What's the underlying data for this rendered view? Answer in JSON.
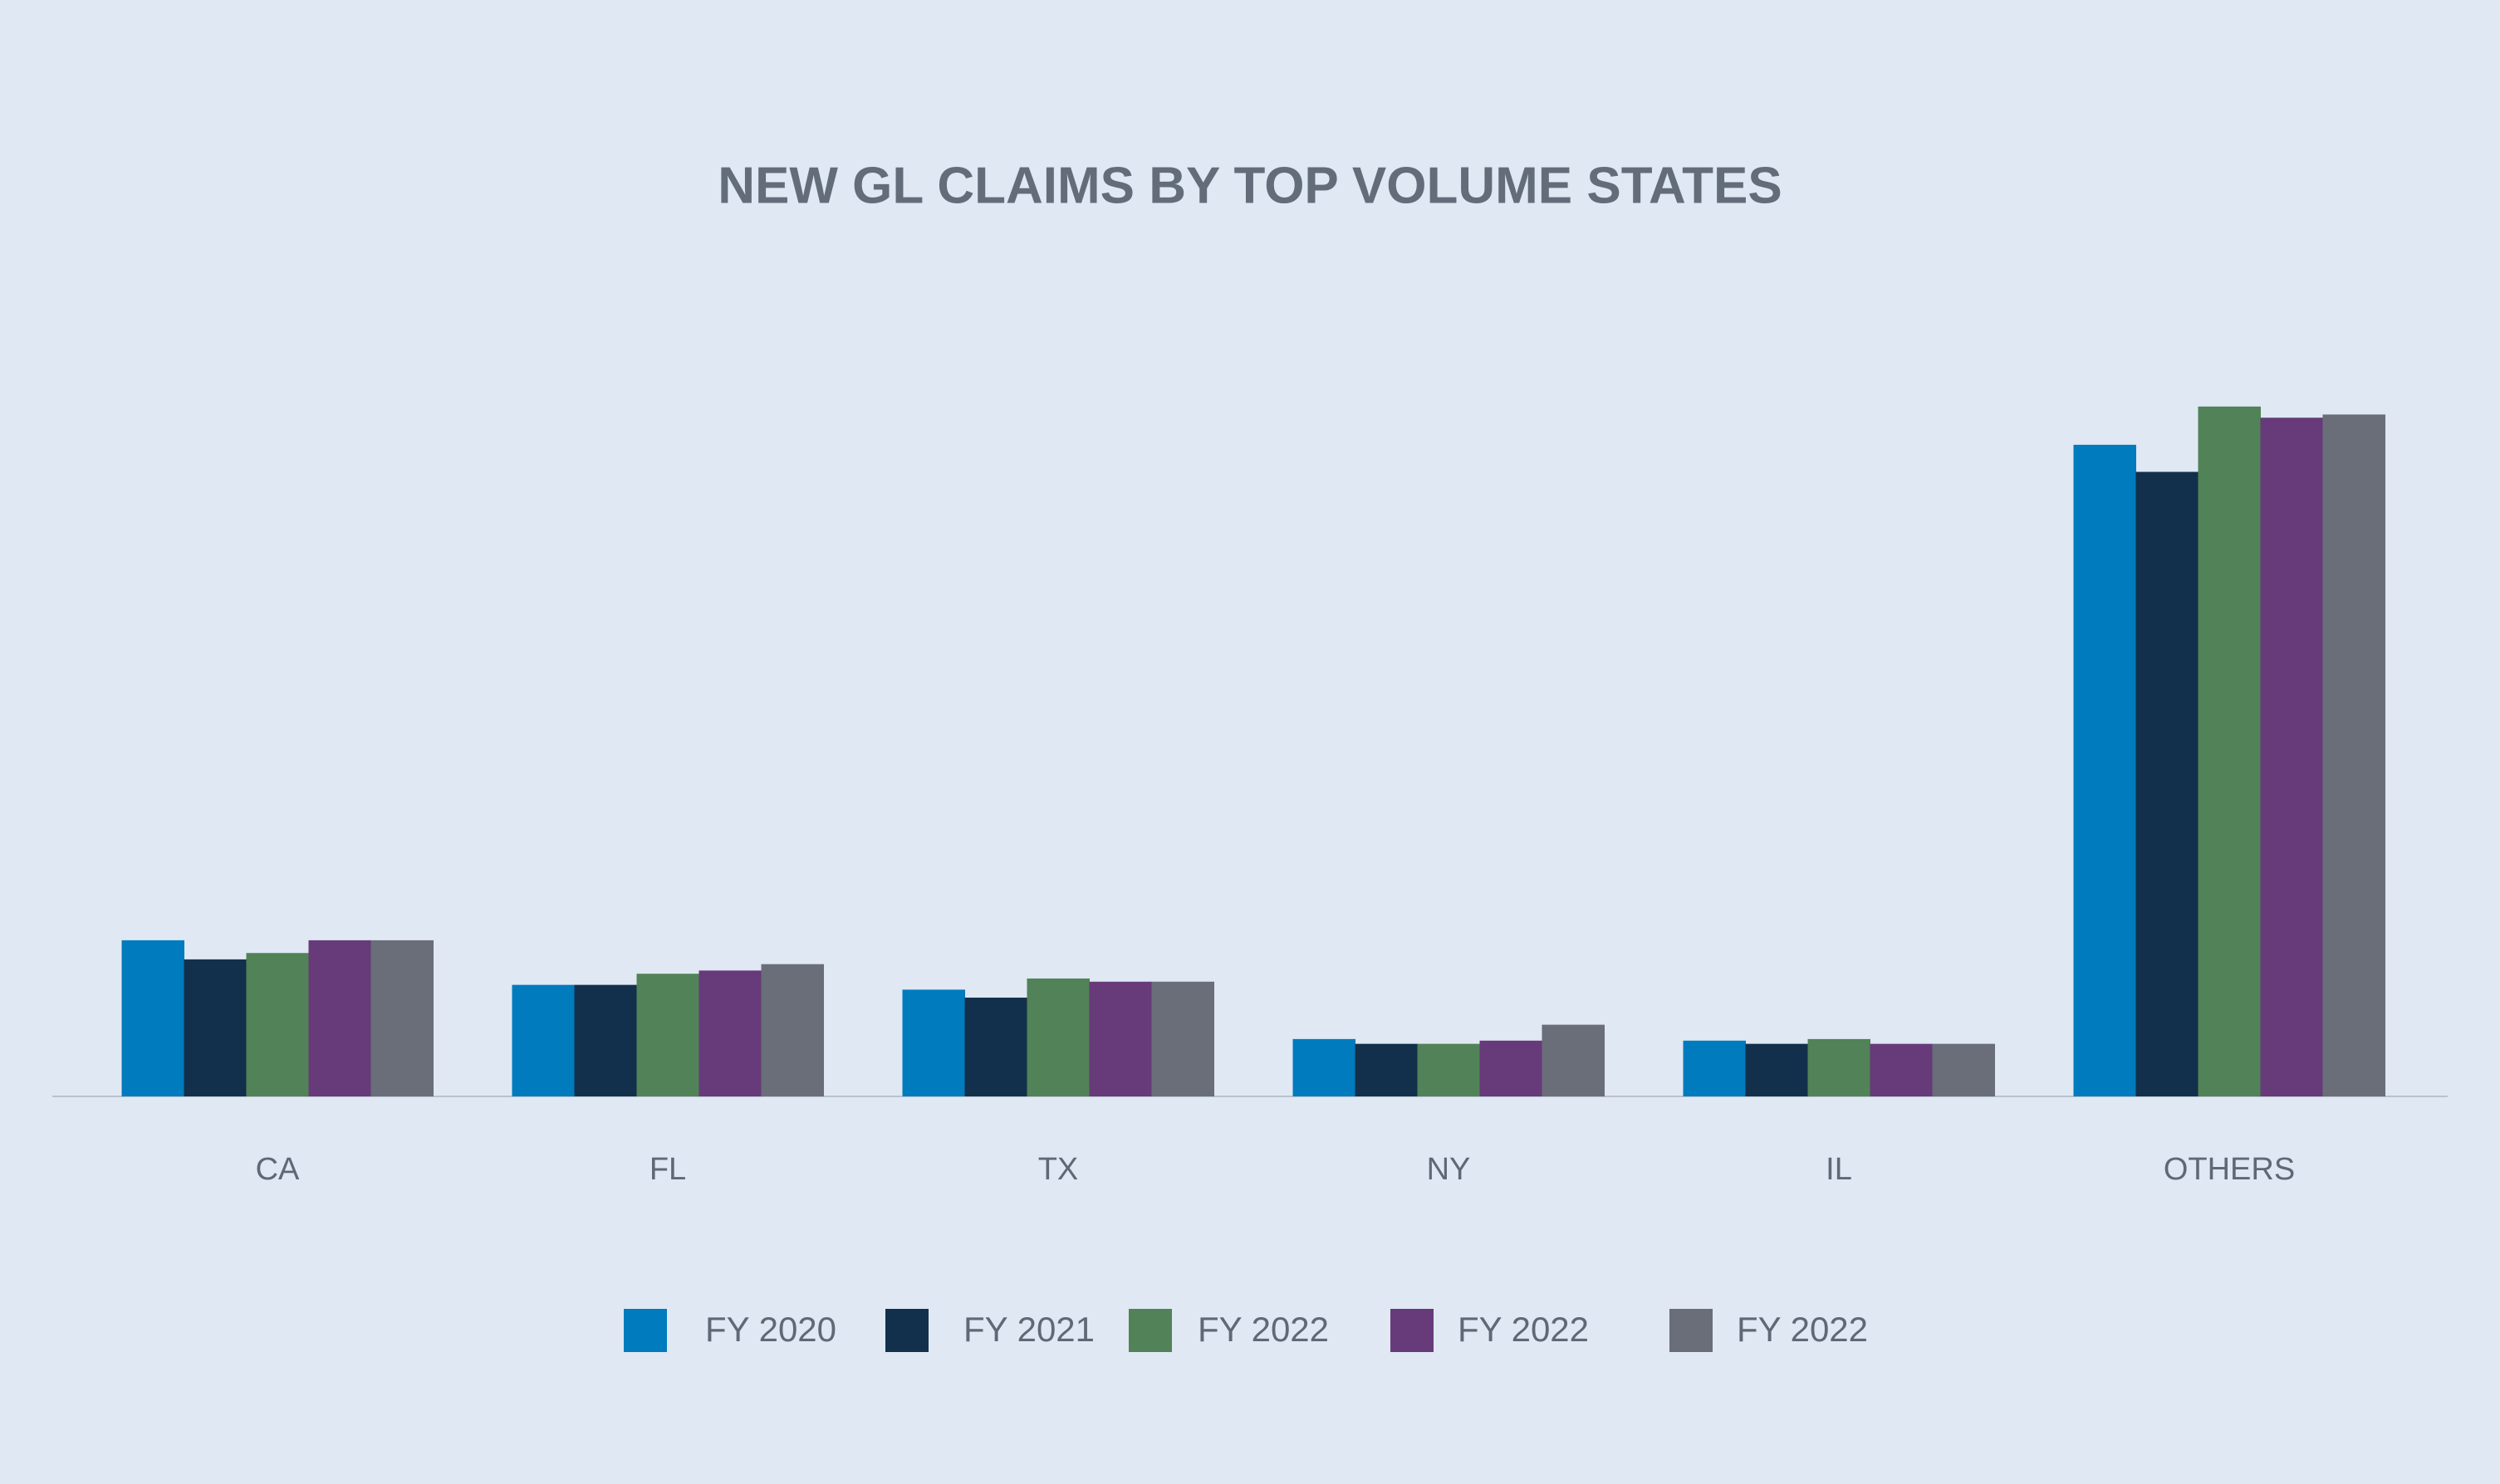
{
  "chart_data": {
    "type": "bar",
    "title": "NEW GL CLAIMS BY TOP VOLUME STATES",
    "categories": [
      "CA",
      "FL",
      "TX",
      "NY",
      "IL",
      "OTHERS"
    ],
    "series": [
      {
        "name": "FY 2020",
        "color": "#007bbd",
        "values": [
          98,
          70,
          67,
          36,
          35,
          409
        ]
      },
      {
        "name": "FY 2021",
        "color": "#12304b",
        "values": [
          86,
          70,
          62,
          33,
          33,
          392
        ]
      },
      {
        "name": "FY 2022",
        "color": "#528257",
        "values": [
          90,
          77,
          74,
          33,
          36,
          433
        ]
      },
      {
        "name": "FY 2022",
        "color": "#673a7a",
        "values": [
          98,
          79,
          72,
          35,
          33,
          426
        ]
      },
      {
        "name": "FY 2022",
        "color": "#696e79",
        "values": [
          98,
          83,
          72,
          45,
          33,
          428
        ]
      }
    ],
    "ylim": [
      0,
      460
    ],
    "legend": "bottom"
  }
}
